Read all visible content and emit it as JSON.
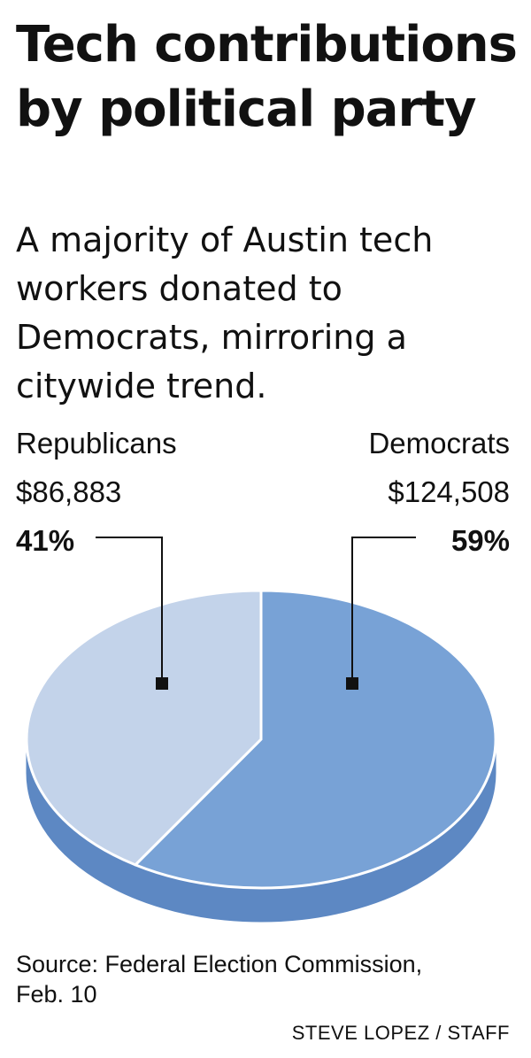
{
  "title": "Tech contributions by political party",
  "subtitle": "A majority of Austin tech workers donated to Democrats, mirroring a citywide trend.",
  "chart_data": {
    "type": "pie",
    "title": "Tech contributions by political party",
    "subtitle": "A majority of Austin tech workers donated to Democrats, mirroring a citywide trend.",
    "slices": [
      {
        "label": "Republicans",
        "amount": 86883,
        "amount_label": "$86,883",
        "percent": 41,
        "percent_label": "41%",
        "color": "#c3d3ea"
      },
      {
        "label": "Democrats",
        "amount": 124508,
        "amount_label": "$124,508",
        "percent": 59,
        "percent_label": "59%",
        "color": "#78a2d6"
      }
    ],
    "side_color": "#5d88c3",
    "legend": "callout labels above slices"
  },
  "source": "Source: Federal Election Commission, Feb. 10",
  "credit": "STEVE LOPEZ / STAFF"
}
